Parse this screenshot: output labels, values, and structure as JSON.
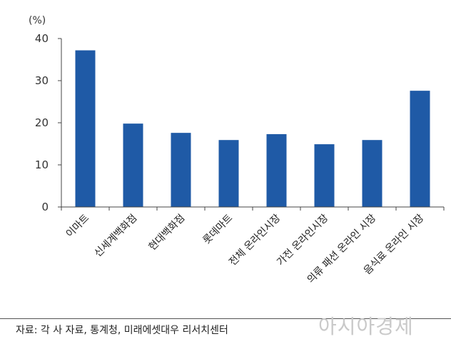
{
  "chart_data": {
    "type": "bar",
    "unit_label": "(%)",
    "categories": [
      "이마트",
      "신세계백화점",
      "현대백화점",
      "롯데마트",
      "전체 온라인시장",
      "가전 온라인시장",
      "의류 패션 온라인 시장",
      "음식료 온라인 시장"
    ],
    "values": [
      37.2,
      19.8,
      17.6,
      15.9,
      17.3,
      14.9,
      15.9,
      27.6
    ],
    "ylim": [
      0,
      40
    ],
    "yticks": [
      0,
      10,
      20,
      30,
      40
    ],
    "bar_color": "#1f5aa6",
    "grid": false
  },
  "footer": {
    "source": "자료: 각 사 자료, 통계청, 미래에셋대우 리서치센터",
    "watermark": "아시아경제"
  }
}
